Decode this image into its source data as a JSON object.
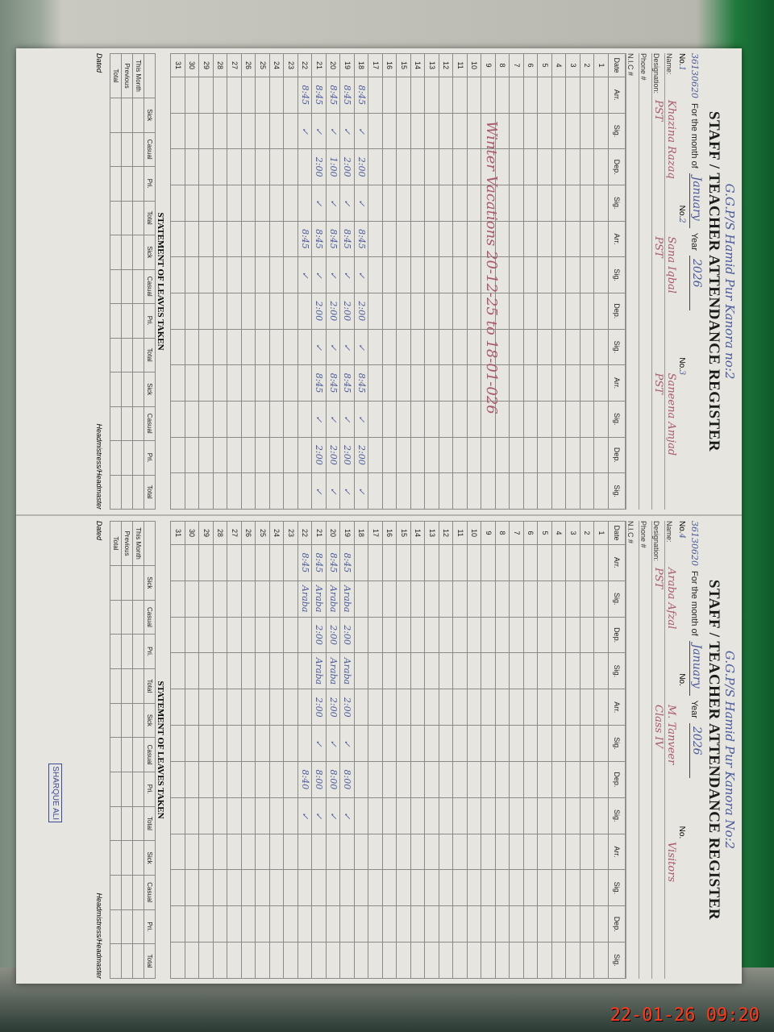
{
  "register": {
    "title": "STAFF / TEACHER ATTENDANCE REGISTER",
    "month_label": "For the month of",
    "year_label": "Year",
    "no_label": "No.",
    "name_label": "Name:",
    "designation_label": "Designation:",
    "phone_label": "Phone #",
    "nic_label": "N.I.C #",
    "col_date": "Date",
    "col_heads": [
      "Arr.",
      "Sig.",
      "Dep.",
      "Sig."
    ],
    "leave_title": "STATEMENT OF LEAVES TAKEN",
    "leave_cols": [
      "Sick",
      "Casual",
      "Pri.",
      "Total"
    ],
    "leave_rows": [
      "This Month",
      "Previous",
      "Total"
    ],
    "headmaster": "Headmistress/Headmaster",
    "dated": "Dated"
  },
  "pages": [
    {
      "school": "G.G.P/S Hamid Pur Kanora no:2",
      "code": "36130620",
      "month": "January",
      "year": "2026",
      "teachers": [
        {
          "no": "1",
          "name": "Khazina Razaq",
          "designation": "PST"
        },
        {
          "no": "2",
          "name": "Sana Iqbal",
          "designation": "PST"
        },
        {
          "no": "3",
          "name": "Saneena Amjad",
          "designation": "PST"
        }
      ],
      "note": "Winter Vacations 20-12-25 to 18-01-026",
      "entries": {
        "18": [
          "8:45",
          "✓",
          "2:00",
          "✓",
          "8:45",
          "✓",
          "2:00",
          "✓",
          "8:45",
          "✓",
          "2:00",
          "✓"
        ],
        "19": [
          "8:45",
          "✓",
          "2:00",
          "✓",
          "8:45",
          "✓",
          "2:00",
          "✓",
          "8:45",
          "✓",
          "2:00",
          "✓"
        ],
        "20": [
          "8:45",
          "✓",
          "1:00",
          "✓",
          "8:45",
          "✓",
          "2:00",
          "✓",
          "8:45",
          "✓",
          "2:00",
          "✓"
        ],
        "21": [
          "8:45",
          "✓",
          "2:00",
          "✓",
          "8:45",
          "✓",
          "2:00",
          "✓",
          "8:45",
          "✓",
          "2:00",
          "✓"
        ],
        "22": [
          "8:45",
          "✓",
          "",
          "",
          "8:45",
          "✓",
          "",
          "",
          "",
          "",
          "",
          ""
        ]
      }
    },
    {
      "school": "G.G.P/S Hamid Pur Kanora No:2",
      "code": "36130620",
      "month": "January",
      "year": "2026",
      "teachers": [
        {
          "no": "4",
          "name": "Araba Afzal",
          "designation": "PST"
        },
        {
          "no": "",
          "name": "M. Tanveer",
          "designation": "Class IV"
        },
        {
          "no": "",
          "name": "Visitors",
          "designation": ""
        }
      ],
      "entries": {
        "19": [
          "8:45",
          "Araba",
          "2:00",
          "Araba",
          "2:00",
          "✓",
          "8:00",
          "✓",
          "",
          "",
          "",
          ""
        ],
        "20": [
          "8:45",
          "Araba",
          "2:00",
          "Araba",
          "2:00",
          "✓",
          "8:00",
          "✓",
          "",
          "",
          "",
          ""
        ],
        "21": [
          "8:45",
          "Araba",
          "2:00",
          "Araba",
          "2:00",
          "✓",
          "8:00",
          "✓",
          "",
          "",
          "",
          ""
        ],
        "22": [
          "8:45",
          "Araba",
          "",
          "",
          "",
          "",
          "8:40",
          "✓",
          "",
          "",
          "",
          ""
        ]
      },
      "stamp": "SHARQUE ALI"
    }
  ],
  "photo_timestamp": "22-01-26  09:20"
}
